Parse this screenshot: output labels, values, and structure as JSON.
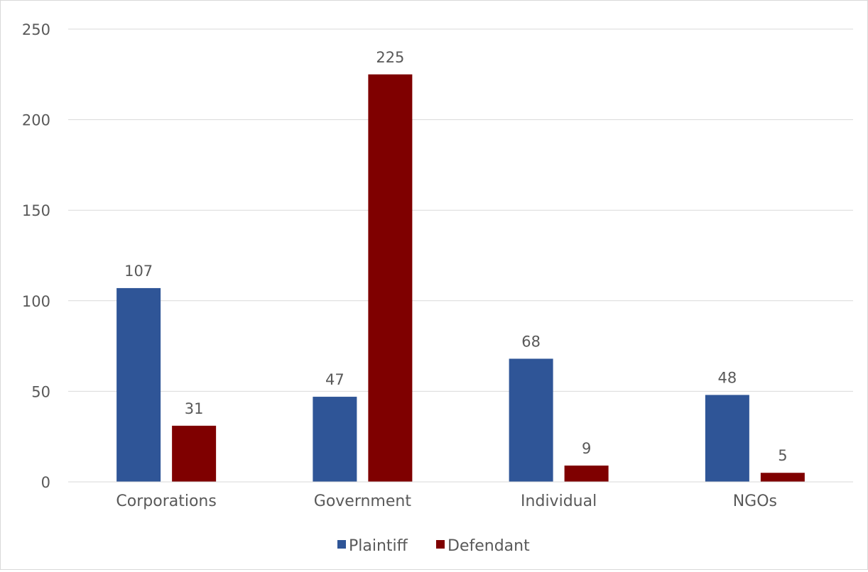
{
  "chart_data": {
    "type": "bar",
    "categories": [
      "Corporations",
      "Government",
      "Individual",
      "NGOs"
    ],
    "series": [
      {
        "name": "Plaintiff",
        "values": [
          107,
          47,
          68,
          48
        ],
        "color": "#2f5597"
      },
      {
        "name": "Defendant",
        "values": [
          31,
          225,
          9,
          5
        ],
        "color": "#7f0000"
      }
    ],
    "y_ticks": [
      "0",
      "50",
      "100",
      "150",
      "200",
      "250"
    ],
    "ylim": [
      0,
      250
    ],
    "grid": true,
    "legend": "bottom",
    "data_labels": true,
    "title": "",
    "xlabel": "",
    "ylabel": ""
  }
}
